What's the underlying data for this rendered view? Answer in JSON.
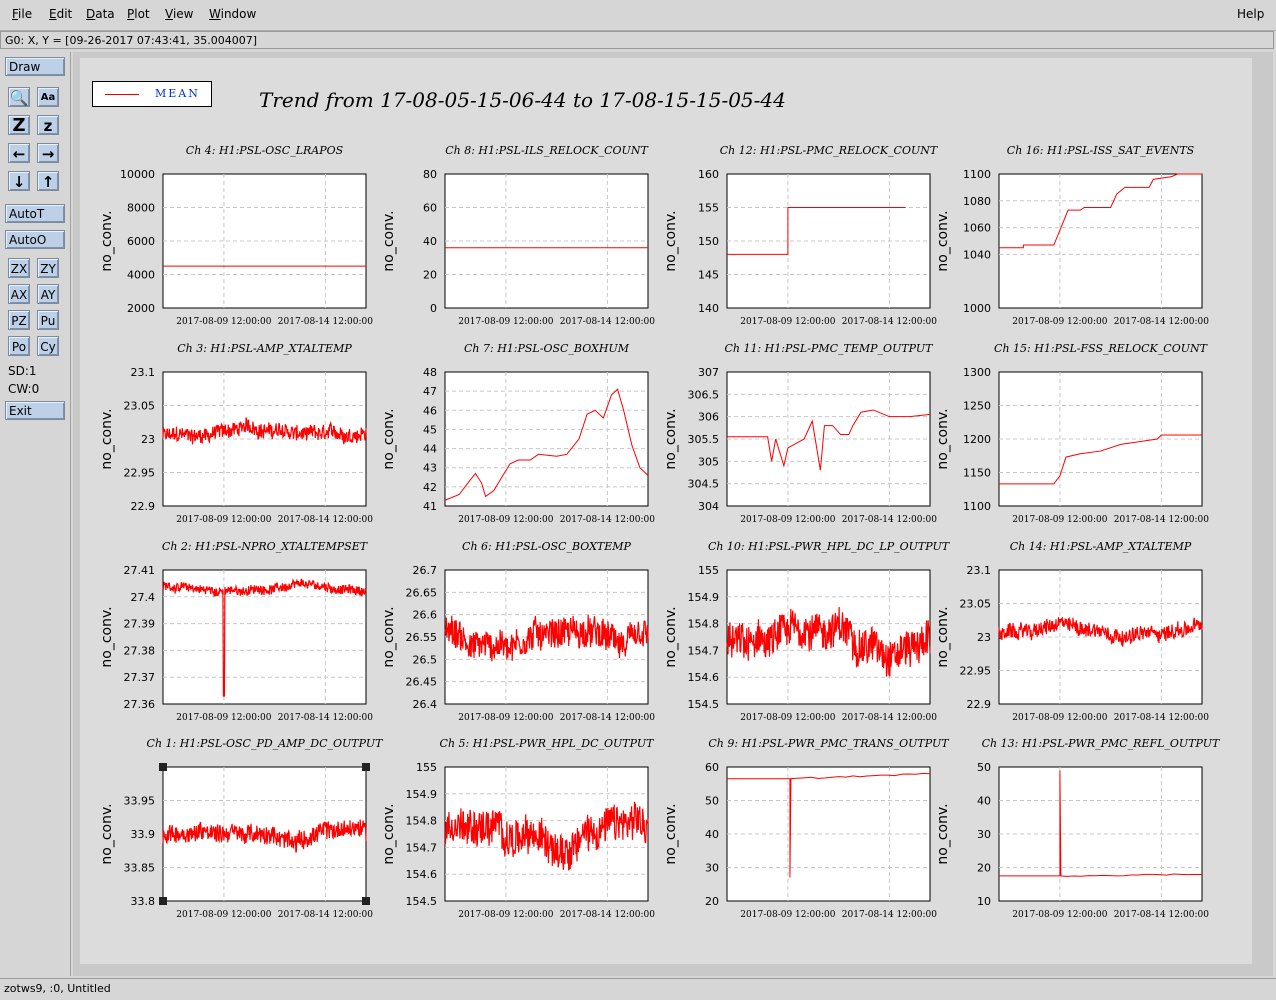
{
  "menubar": {
    "items": [
      "File",
      "Edit",
      "Data",
      "Plot",
      "View",
      "Window"
    ],
    "underline": [
      "F",
      "E",
      "D",
      "P",
      "V",
      "W"
    ],
    "help": "Help"
  },
  "coord_readout": "G0: X, Y = [09-26-2017 07:43:41, 35.004007]",
  "toolbar": {
    "draw": "Draw",
    "icon_buttons": [
      {
        "name": "search-icon",
        "glyph": "🔍"
      },
      {
        "name": "text-style-icon",
        "glyph": "Aa"
      },
      {
        "name": "zoom-in-icon",
        "glyph": "Z"
      },
      {
        "name": "zoom-out-icon",
        "glyph": "z"
      },
      {
        "name": "arrow-left-icon",
        "glyph": "←"
      },
      {
        "name": "arrow-right-icon",
        "glyph": "→"
      },
      {
        "name": "arrow-down-icon",
        "glyph": "↓"
      },
      {
        "name": "arrow-up-icon",
        "glyph": "↑"
      }
    ],
    "autot": "AutoT",
    "autoo": "AutoO",
    "pairs": [
      [
        "ZX",
        "ZY"
      ],
      [
        "AX",
        "AY"
      ],
      [
        "PZ",
        "Pu"
      ],
      [
        "Po",
        "Cy"
      ]
    ],
    "sd": "SD:1",
    "cw": "CW:0",
    "exit": "Exit"
  },
  "legend": {
    "label": "MEAN",
    "color": "#ff0000"
  },
  "trend_title": "Trend from 17-08-05-15-06-44 to 17-08-15-15-05-44",
  "x_ticks": [
    "2017-08-09 12:00:00",
    "2017-08-14 12:00:00"
  ],
  "ylabel": "no_conv.",
  "status": "zotws9, :0, Untitled",
  "chart_data": [
    {
      "type": "line",
      "title": "Ch 4: H1:PSL-OSC_LRAPOS",
      "yticks": [
        "10000",
        "8000",
        "6000",
        "4000",
        "2000"
      ],
      "ylim": [
        2000,
        10000
      ],
      "shape": "flat",
      "level": 4500
    },
    {
      "type": "line",
      "title": "Ch 8: H1:PSL-ILS_RELOCK_COUNT",
      "yticks": [
        "80",
        "60",
        "40",
        "20",
        "0"
      ],
      "ylim": [
        0,
        80
      ],
      "shape": "flat",
      "level": 36
    },
    {
      "type": "line",
      "title": "Ch 12: H1:PSL-PMC_RELOCK_COUNT",
      "yticks": [
        "160",
        "155",
        "150",
        "145",
        "140"
      ],
      "ylim": [
        140,
        160
      ],
      "shape": "step",
      "points": [
        [
          0,
          148
        ],
        [
          0.3,
          148
        ],
        [
          0.3,
          155
        ],
        [
          0.88,
          155
        ]
      ]
    },
    {
      "type": "line",
      "title": "Ch 16: H1:PSL-ISS_SAT_EVENTS",
      "yticks": [
        "1100",
        "1080",
        "1060",
        "1040",
        "1000"
      ],
      "ylim": [
        1000,
        1100
      ],
      "shape": "step",
      "points": [
        [
          0,
          1045
        ],
        [
          0.12,
          1045
        ],
        [
          0.12,
          1047
        ],
        [
          0.27,
          1047
        ],
        [
          0.3,
          1058
        ],
        [
          0.34,
          1073
        ],
        [
          0.4,
          1073
        ],
        [
          0.42,
          1075
        ],
        [
          0.55,
          1075
        ],
        [
          0.58,
          1085
        ],
        [
          0.62,
          1090
        ],
        [
          0.74,
          1090
        ],
        [
          0.76,
          1096
        ],
        [
          0.85,
          1098
        ],
        [
          0.88,
          1100
        ],
        [
          1,
          1100
        ]
      ]
    },
    {
      "type": "line",
      "title": "Ch 3: H1:PSL-AMP_XTALTEMP",
      "yticks": [
        "23.1",
        "23.05",
        "23",
        "22.95",
        "22.9"
      ],
      "ylim": [
        22.9,
        23.1
      ],
      "shape": "noise",
      "base": 23.01,
      "amp": 0.01
    },
    {
      "type": "line",
      "title": "Ch 7: H1:PSL-OSC_BOXHUM",
      "yticks": [
        "48",
        "47",
        "46",
        "45",
        "44",
        "43",
        "42",
        "41"
      ],
      "ylim": [
        41,
        48
      ],
      "shape": "curve",
      "points": [
        [
          0,
          41.3
        ],
        [
          0.07,
          41.6
        ],
        [
          0.12,
          42.3
        ],
        [
          0.15,
          42.7
        ],
        [
          0.18,
          42.2
        ],
        [
          0.2,
          41.5
        ],
        [
          0.24,
          41.8
        ],
        [
          0.28,
          42.5
        ],
        [
          0.32,
          43.2
        ],
        [
          0.36,
          43.4
        ],
        [
          0.42,
          43.4
        ],
        [
          0.46,
          43.7
        ],
        [
          0.55,
          43.6
        ],
        [
          0.6,
          43.7
        ],
        [
          0.66,
          44.5
        ],
        [
          0.7,
          45.8
        ],
        [
          0.74,
          46.0
        ],
        [
          0.78,
          45.6
        ],
        [
          0.82,
          46.8
        ],
        [
          0.85,
          47.1
        ],
        [
          0.88,
          46.0
        ],
        [
          0.92,
          44.2
        ],
        [
          0.96,
          43.0
        ],
        [
          1,
          42.6
        ]
      ]
    },
    {
      "type": "line",
      "title": "Ch 11: H1:PSL-PMC_TEMP_OUTPUT",
      "yticks": [
        "307",
        "306.5",
        "306",
        "305.5",
        "305",
        "304.5",
        "304"
      ],
      "ylim": [
        304,
        307
      ],
      "shape": "curve",
      "points": [
        [
          0,
          305.55
        ],
        [
          0.2,
          305.55
        ],
        [
          0.22,
          305.0
        ],
        [
          0.24,
          305.5
        ],
        [
          0.28,
          304.9
        ],
        [
          0.3,
          305.3
        ],
        [
          0.34,
          305.4
        ],
        [
          0.38,
          305.5
        ],
        [
          0.42,
          305.9
        ],
        [
          0.46,
          304.8
        ],
        [
          0.48,
          305.8
        ],
        [
          0.52,
          305.8
        ],
        [
          0.56,
          305.6
        ],
        [
          0.6,
          305.6
        ],
        [
          0.62,
          305.8
        ],
        [
          0.66,
          306.1
        ],
        [
          0.72,
          306.15
        ],
        [
          0.8,
          306.0
        ],
        [
          0.9,
          306.0
        ],
        [
          1,
          306.05
        ]
      ]
    },
    {
      "type": "line",
      "title": "Ch 15: H1:PSL-FSS_RELOCK_COUNT",
      "yticks": [
        "1300",
        "1250",
        "1200",
        "1150",
        "1100"
      ],
      "ylim": [
        1100,
        1300
      ],
      "shape": "step",
      "points": [
        [
          0,
          1133
        ],
        [
          0.27,
          1133
        ],
        [
          0.3,
          1145
        ],
        [
          0.33,
          1173
        ],
        [
          0.4,
          1178
        ],
        [
          0.5,
          1182
        ],
        [
          0.6,
          1192
        ],
        [
          0.78,
          1200
        ],
        [
          0.8,
          1206
        ],
        [
          1,
          1206
        ]
      ]
    },
    {
      "type": "line",
      "title": "Ch 2: H1:PSL-NPRO_XTALTEMPSET",
      "yticks": [
        "27.41",
        "27.4",
        "27.39",
        "27.38",
        "27.37",
        "27.36"
      ],
      "ylim": [
        27.36,
        27.41
      ],
      "shape": "noise",
      "base": 27.403,
      "amp": 0.0015,
      "spike": [
        0.3,
        27.363
      ]
    },
    {
      "type": "line",
      "title": "Ch 6: H1:PSL-OSC_BOXTEMP",
      "yticks": [
        "26.7",
        "26.65",
        "26.6",
        "26.55",
        "26.5",
        "26.45",
        "26.4"
      ],
      "ylim": [
        26.4,
        26.7
      ],
      "shape": "noise",
      "base": 26.55,
      "amp": 0.03
    },
    {
      "type": "line",
      "title": "Ch 10: H1:PSL-PWR_HPL_DC_LP_OUTPUT",
      "yticks": [
        "155",
        "154.9",
        "154.8",
        "154.7",
        "154.6",
        "154.5"
      ],
      "ylim": [
        154.5,
        155
      ],
      "shape": "noise",
      "base": 154.75,
      "amp": 0.06
    },
    {
      "type": "line",
      "title": "Ch 14: H1:PSL-AMP_XTALTEMP",
      "yticks": [
        "23.1",
        "23.05",
        "23",
        "22.95",
        "22.9"
      ],
      "ylim": [
        22.9,
        23.1
      ],
      "shape": "noise",
      "base": 23.01,
      "amp": 0.01
    },
    {
      "type": "line",
      "title": "Ch 1: H1:PSL-OSC_PD_AMP_DC_OUTPUT",
      "yticks": [
        "33.95",
        "33.9",
        "33.85",
        "33.8"
      ],
      "ylim": [
        33.8,
        34.0
      ],
      "shape": "noise",
      "base": 33.9,
      "amp": 0.012,
      "selected": true
    },
    {
      "type": "line",
      "title": "Ch 5: H1:PSL-PWR_HPL_DC_OUTPUT",
      "yticks": [
        "155",
        "154.9",
        "154.8",
        "154.7",
        "154.6",
        "154.5"
      ],
      "ylim": [
        154.5,
        155
      ],
      "shape": "noise",
      "base": 154.75,
      "amp": 0.06
    },
    {
      "type": "line",
      "title": "Ch 9: H1:PSL-PWR_PMC_TRANS_OUTPUT",
      "yticks": [
        "60",
        "50",
        "40",
        "30",
        "20"
      ],
      "ylim": [
        20,
        60
      ],
      "shape": "flat",
      "level": 56.5,
      "spike": [
        0.31,
        27
      ],
      "end": 58
    },
    {
      "type": "line",
      "title": "Ch 13: H1:PSL-PWR_PMC_REFL_OUTPUT",
      "yticks": [
        "50",
        "40",
        "30",
        "20",
        "10"
      ],
      "ylim": [
        10,
        50
      ],
      "shape": "flat",
      "level": 17.5,
      "spike": [
        0.3,
        49
      ],
      "end": 18
    }
  ]
}
